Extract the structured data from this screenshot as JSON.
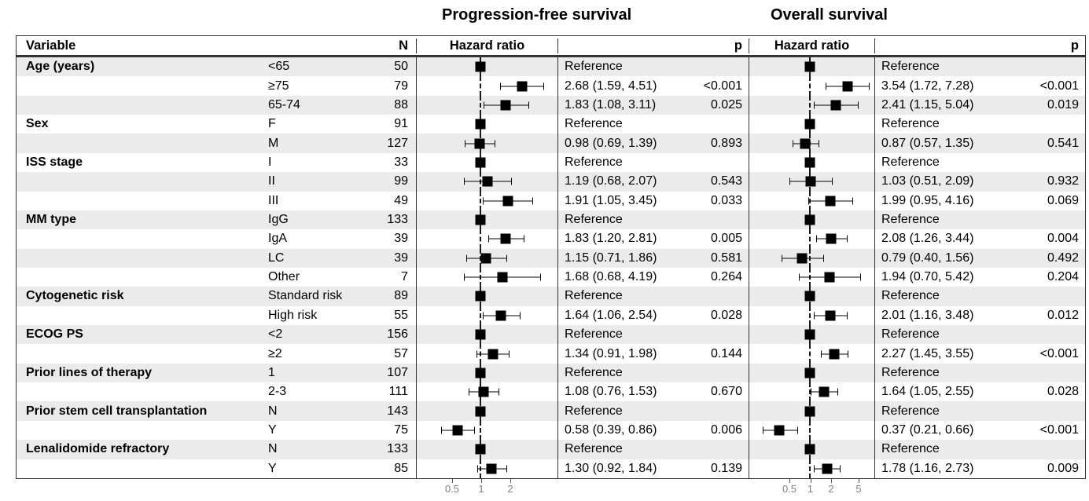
{
  "figure": {
    "pfs_title": "Progression-free survival",
    "os_title": "Overall survival"
  },
  "table_header": {
    "variable": "Variable",
    "n": "N",
    "pfs_hazard_ratio": "Hazard ratio",
    "pfs_p": "p",
    "os_hazard_ratio": "Hazard ratio",
    "os_p": "p"
  },
  "colors": {
    "stripe": "#ebebeb",
    "marker": "#000000",
    "border": "#333333",
    "axis_label": "#7f7f7f"
  },
  "chart_data": {
    "type": "table",
    "variant": "forest_plot",
    "x_scale": "log",
    "panels": [
      {
        "key": "pfs",
        "name": "Progression-free survival",
        "ticks": [
          0.5,
          1,
          2
        ],
        "reference_line": 1
      },
      {
        "key": "os",
        "name": "Overall survival",
        "ticks": [
          0.5,
          1,
          2,
          5
        ],
        "reference_line": 1
      }
    ],
    "rows": [
      {
        "variable": "Age (years)",
        "subgroup": "<65",
        "n": "50",
        "pfs": {
          "text": "Reference",
          "reference": true
        },
        "os": {
          "text": "Reference",
          "reference": true
        }
      },
      {
        "variable": "",
        "subgroup": "≥75",
        "n": "79",
        "pfs": {
          "text": "2.68 (1.59, 4.51)",
          "p": "<0.001",
          "hr": 2.68,
          "lo": 1.59,
          "hi": 4.51
        },
        "os": {
          "text": "3.54 (1.72, 7.28)",
          "p": "<0.001",
          "hr": 3.54,
          "lo": 1.72,
          "hi": 7.28
        }
      },
      {
        "variable": "",
        "subgroup": "65-74",
        "n": "88",
        "pfs": {
          "text": "1.83 (1.08, 3.11)",
          "p": "0.025",
          "hr": 1.83,
          "lo": 1.08,
          "hi": 3.11
        },
        "os": {
          "text": "2.41 (1.15, 5.04)",
          "p": "0.019",
          "hr": 2.41,
          "lo": 1.15,
          "hi": 5.04
        }
      },
      {
        "variable": "Sex",
        "subgroup": "F",
        "n": "91",
        "pfs": {
          "text": "Reference",
          "reference": true
        },
        "os": {
          "text": "Reference",
          "reference": true
        }
      },
      {
        "variable": "",
        "subgroup": "M",
        "n": "127",
        "pfs": {
          "text": "0.98 (0.69, 1.39)",
          "p": "0.893",
          "hr": 0.98,
          "lo": 0.69,
          "hi": 1.39
        },
        "os": {
          "text": "0.87 (0.57, 1.35)",
          "p": "0.541",
          "hr": 0.87,
          "lo": 0.57,
          "hi": 1.35
        }
      },
      {
        "variable": "ISS stage",
        "subgroup": "I",
        "n": "33",
        "pfs": {
          "text": "Reference",
          "reference": true
        },
        "os": {
          "text": "Reference",
          "reference": true
        }
      },
      {
        "variable": "",
        "subgroup": "II",
        "n": "99",
        "pfs": {
          "text": "1.19 (0.68, 2.07)",
          "p": "0.543",
          "hr": 1.19,
          "lo": 0.68,
          "hi": 2.07
        },
        "os": {
          "text": "1.03 (0.51, 2.09)",
          "p": "0.932",
          "hr": 1.03,
          "lo": 0.51,
          "hi": 2.09
        }
      },
      {
        "variable": "",
        "subgroup": "III",
        "n": "49",
        "pfs": {
          "text": "1.91 (1.05, 3.45)",
          "p": "0.033",
          "hr": 1.91,
          "lo": 1.05,
          "hi": 3.45
        },
        "os": {
          "text": "1.99 (0.95, 4.16)",
          "p": "0.069",
          "hr": 1.99,
          "lo": 0.95,
          "hi": 4.16
        }
      },
      {
        "variable": "MM type",
        "subgroup": "IgG",
        "n": "133",
        "pfs": {
          "text": "Reference",
          "reference": true
        },
        "os": {
          "text": "Reference",
          "reference": true
        }
      },
      {
        "variable": "",
        "subgroup": "IgA",
        "n": "39",
        "pfs": {
          "text": "1.83 (1.20, 2.81)",
          "p": "0.005",
          "hr": 1.83,
          "lo": 1.2,
          "hi": 2.81
        },
        "os": {
          "text": "2.08 (1.26, 3.44)",
          "p": "0.004",
          "hr": 2.08,
          "lo": 1.26,
          "hi": 3.44
        }
      },
      {
        "variable": "",
        "subgroup": "LC",
        "n": "39",
        "pfs": {
          "text": "1.15 (0.71, 1.86)",
          "p": "0.581",
          "hr": 1.15,
          "lo": 0.71,
          "hi": 1.86
        },
        "os": {
          "text": "0.79 (0.40, 1.56)",
          "p": "0.492",
          "hr": 0.79,
          "lo": 0.4,
          "hi": 1.56
        }
      },
      {
        "variable": "",
        "subgroup": "Other",
        "n": "7",
        "pfs": {
          "text": "1.68 (0.68, 4.19)",
          "p": "0.264",
          "hr": 1.68,
          "lo": 0.68,
          "hi": 4.19
        },
        "os": {
          "text": "1.94 (0.70, 5.42)",
          "p": "0.204",
          "hr": 1.94,
          "lo": 0.7,
          "hi": 5.42
        }
      },
      {
        "variable": "Cytogenetic risk",
        "subgroup": "Standard risk",
        "n": "89",
        "pfs": {
          "text": "Reference",
          "reference": true
        },
        "os": {
          "text": "Reference",
          "reference": true
        }
      },
      {
        "variable": "",
        "subgroup": "High risk",
        "n": "55",
        "pfs": {
          "text": "1.64 (1.06, 2.54)",
          "p": "0.028",
          "hr": 1.64,
          "lo": 1.06,
          "hi": 2.54
        },
        "os": {
          "text": "2.01 (1.16, 3.48)",
          "p": "0.012",
          "hr": 2.01,
          "lo": 1.16,
          "hi": 3.48
        }
      },
      {
        "variable": "ECOG PS",
        "subgroup": "<2",
        "n": "156",
        "pfs": {
          "text": "Reference",
          "reference": true
        },
        "os": {
          "text": "Reference",
          "reference": true
        }
      },
      {
        "variable": "",
        "subgroup": "≥2",
        "n": "57",
        "pfs": {
          "text": "1.34 (0.91, 1.98)",
          "p": "0.144",
          "hr": 1.34,
          "lo": 0.91,
          "hi": 1.98
        },
        "os": {
          "text": "2.27 (1.45, 3.55)",
          "p": "<0.001",
          "hr": 2.27,
          "lo": 1.45,
          "hi": 3.55
        }
      },
      {
        "variable": "Prior lines of therapy",
        "subgroup": "1",
        "n": "107",
        "pfs": {
          "text": "Reference",
          "reference": true
        },
        "os": {
          "text": "Reference",
          "reference": true
        }
      },
      {
        "variable": "",
        "subgroup": "2-3",
        "n": "111",
        "pfs": {
          "text": "1.08 (0.76, 1.53)",
          "p": "0.670",
          "hr": 1.08,
          "lo": 0.76,
          "hi": 1.53
        },
        "os": {
          "text": "1.64 (1.05, 2.55)",
          "p": "0.028",
          "hr": 1.64,
          "lo": 1.05,
          "hi": 2.55
        }
      },
      {
        "variable": "Prior stem cell transplantation",
        "subgroup": "N",
        "n": "143",
        "pfs": {
          "text": "Reference",
          "reference": true
        },
        "os": {
          "text": "Reference",
          "reference": true
        }
      },
      {
        "variable": "",
        "subgroup": "Y",
        "n": "75",
        "pfs": {
          "text": "0.58 (0.39, 0.86)",
          "p": "0.006",
          "hr": 0.58,
          "lo": 0.39,
          "hi": 0.86
        },
        "os": {
          "text": "0.37 (0.21, 0.66)",
          "p": "<0.001",
          "hr": 0.37,
          "lo": 0.21,
          "hi": 0.66
        }
      },
      {
        "variable": "Lenalidomide refractory",
        "subgroup": "N",
        "n": "133",
        "pfs": {
          "text": "Reference",
          "reference": true
        },
        "os": {
          "text": "Reference",
          "reference": true
        }
      },
      {
        "variable": "",
        "subgroup": "Y",
        "n": "85",
        "pfs": {
          "text": "1.30 (0.92, 1.84)",
          "p": "0.139",
          "hr": 1.3,
          "lo": 0.92,
          "hi": 1.84
        },
        "os": {
          "text": "1.78 (1.16, 2.73)",
          "p": "0.009",
          "hr": 1.78,
          "lo": 1.16,
          "hi": 2.73
        }
      }
    ]
  }
}
